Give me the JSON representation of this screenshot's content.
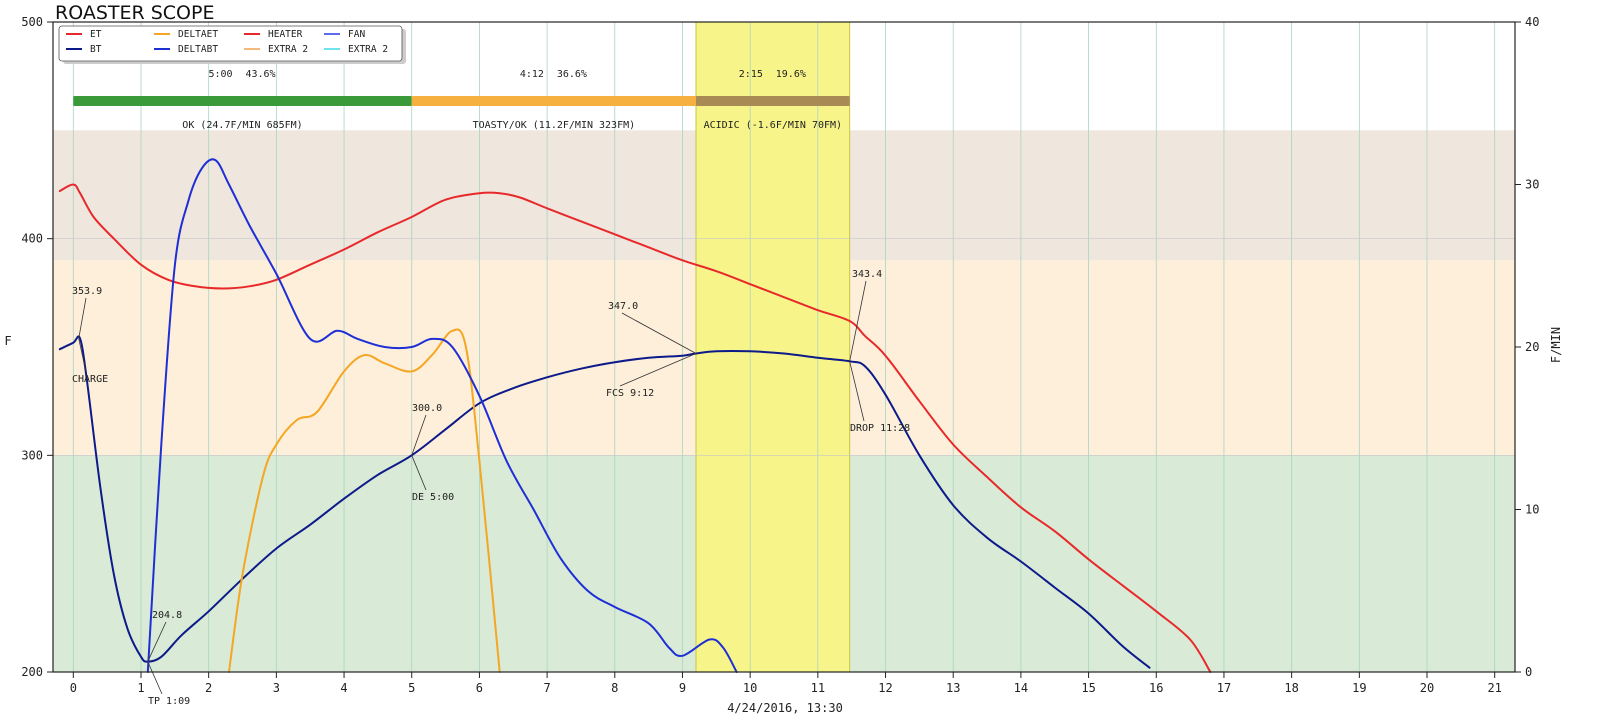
{
  "chart_data": {
    "type": "line",
    "title": "ROASTER SCOPE",
    "xlabel": "4/24/2016, 13:30",
    "ylabel_left": "F",
    "ylabel_right": "F/MIN",
    "xlim": [
      -0.3,
      21.3
    ],
    "ylim_left": [
      200,
      500
    ],
    "ylim_right": [
      0,
      40
    ],
    "x_ticks": [
      0,
      1,
      2,
      3,
      4,
      5,
      6,
      7,
      8,
      9,
      10,
      11,
      12,
      13,
      14,
      15,
      16,
      17,
      18,
      19,
      20,
      21
    ],
    "x_tick_labels": [
      "0",
      "1",
      "2",
      "3",
      "4",
      "5",
      "6",
      "7",
      "8",
      "9",
      "10",
      "11",
      "12",
      "13",
      "14",
      "15",
      "16",
      "17",
      "18",
      "19",
      "20",
      "21"
    ],
    "y_left_ticks": [
      200,
      300,
      400,
      500
    ],
    "y_left_tick_labels": [
      "200",
      "300",
      "400",
      "500"
    ],
    "y_right_ticks": [
      0,
      10,
      20,
      30,
      40
    ],
    "y_right_tick_labels": [
      "0",
      "10",
      "20",
      "30",
      "40"
    ],
    "grid": "vertical",
    "legend_position": "top-left",
    "legend": [
      {
        "name": "ET",
        "color": "#e8292b"
      },
      {
        "name": "BT",
        "color": "#0c1a8a"
      },
      {
        "name": "DELTAET",
        "color": "#f5a623"
      },
      {
        "name": "DELTABT",
        "color": "#1f2fd6"
      },
      {
        "name": "HEATER",
        "color": "#e8292b"
      },
      {
        "name": "EXTRA 2",
        "color": "#f5b97a"
      },
      {
        "name": "FAN",
        "color": "#5b6cf0"
      },
      {
        "name": "EXTRA 2",
        "color": "#6fe3f0"
      }
    ],
    "background_bands": [
      {
        "from": 200,
        "to": 300,
        "color": "#d9ead6"
      },
      {
        "from": 300,
        "to": 390,
        "color": "#fdefd9"
      },
      {
        "from": 390,
        "to": 450,
        "color": "#efe6dd"
      }
    ],
    "highlight_span": {
      "from": 9.2,
      "to": 11.47,
      "color": "#f7f58a"
    },
    "phases": [
      {
        "from": 0,
        "to": 5.0,
        "time": "5:00",
        "percent": "43.6%",
        "label": "OK (24.7F/MIN 685FM)",
        "color": "#3a9a3a"
      },
      {
        "from": 5.0,
        "to": 9.2,
        "time": "4:12",
        "percent": "36.6%",
        "label": "TOASTY/OK (11.2F/MIN 323FM)",
        "color": "#f5b040"
      },
      {
        "from": 9.2,
        "to": 11.47,
        "time": "2:15",
        "percent": "19.6%",
        "label": "ACIDIC (-1.6F/MIN 70FM)",
        "color": "#a88a55"
      }
    ],
    "series": [
      {
        "name": "ET",
        "axis": "left",
        "color": "#e8292b",
        "x": [
          -0.2,
          0.0,
          0.1,
          0.3,
          0.6,
          1.0,
          1.4,
          1.8,
          2.2,
          2.6,
          3.0,
          3.5,
          4.0,
          4.5,
          5.0,
          5.5,
          6.0,
          6.3,
          6.6,
          7.0,
          7.5,
          8.0,
          8.5,
          9.0,
          9.5,
          10.0,
          10.5,
          11.0,
          11.47,
          11.7,
          12.0,
          12.5,
          13.0,
          13.5,
          14.0,
          14.5,
          15.0,
          15.5,
          16.0,
          16.5,
          16.8
        ],
        "y": [
          422,
          425,
          421,
          410,
          400,
          388,
          381,
          378,
          377,
          378,
          381,
          388,
          395,
          403,
          410,
          418,
          421,
          421,
          419,
          414,
          408,
          402,
          396,
          390,
          385,
          379,
          373,
          367,
          362,
          355,
          346,
          325,
          305,
          290,
          276,
          265,
          252,
          240,
          228,
          215,
          200
        ]
      },
      {
        "name": "BT",
        "axis": "left",
        "color": "#0c1a8a",
        "x": [
          -0.2,
          0.0,
          0.1,
          0.2,
          0.4,
          0.6,
          0.8,
          1.0,
          1.1,
          1.3,
          1.6,
          2.0,
          2.5,
          3.0,
          3.5,
          4.0,
          4.5,
          5.0,
          5.5,
          6.0,
          6.5,
          7.0,
          7.5,
          8.0,
          8.5,
          9.0,
          9.2,
          9.5,
          10.0,
          10.5,
          11.0,
          11.47,
          11.7,
          12.0,
          12.5,
          13.0,
          13.5,
          14.0,
          14.5,
          15.0,
          15.5,
          15.9
        ],
        "y": [
          349,
          352,
          353.9,
          335,
          285,
          245,
          220,
          207,
          204.8,
          207,
          217,
          228,
          243,
          257,
          268,
          280,
          291,
          300,
          312,
          324,
          331,
          336,
          340,
          343,
          345,
          346,
          347.0,
          348,
          348,
          347,
          345,
          343.4,
          341,
          328,
          300,
          277,
          262,
          251,
          239,
          227,
          212,
          202
        ]
      },
      {
        "name": "DELTAET",
        "axis": "right",
        "color": "#f5a623",
        "x": [
          2.3,
          2.5,
          2.8,
          3.0,
          3.3,
          3.6,
          4.0,
          4.3,
          4.6,
          5.0,
          5.3,
          5.6,
          5.8,
          6.0,
          6.3
        ],
        "y": [
          0,
          6,
          12,
          14,
          15.5,
          16,
          18.5,
          19.5,
          19,
          18.5,
          19.5,
          21,
          20,
          13,
          0
        ]
      },
      {
        "name": "DELTABT",
        "axis": "right",
        "color": "#1f2fd6",
        "x": [
          1.1,
          1.3,
          1.5,
          1.7,
          1.9,
          2.1,
          2.3,
          2.6,
          3.0,
          3.5,
          3.9,
          4.2,
          4.6,
          5.0,
          5.3,
          5.6,
          6.0,
          6.4,
          6.8,
          7.2,
          7.6,
          8.0,
          8.5,
          8.8,
          9.0,
          9.4,
          9.6,
          9.8
        ],
        "y": [
          0,
          14,
          25,
          29,
          31,
          31.5,
          30,
          27.5,
          24.5,
          20.5,
          21,
          20.5,
          20,
          20,
          20.5,
          20,
          17,
          13,
          10,
          7,
          5,
          4,
          3,
          1.5,
          1,
          2,
          1.5,
          0
        ]
      }
    ],
    "annotations": [
      {
        "x": 0.08,
        "y": 353.9,
        "axis": "left",
        "value": "353.9",
        "label": "CHARGE"
      },
      {
        "x": 1.1,
        "y": 204.8,
        "axis": "left",
        "value": "204.8",
        "label": "TP 1:09"
      },
      {
        "x": 5.0,
        "y": 300.0,
        "axis": "left",
        "value": "300.0",
        "label": "DE 5:00"
      },
      {
        "x": 9.2,
        "y": 347.0,
        "axis": "left",
        "value": "347.0",
        "label": "FCS 9:12"
      },
      {
        "x": 11.47,
        "y": 343.4,
        "axis": "left",
        "value": "343.4",
        "label": "DROP 11:28"
      }
    ]
  }
}
